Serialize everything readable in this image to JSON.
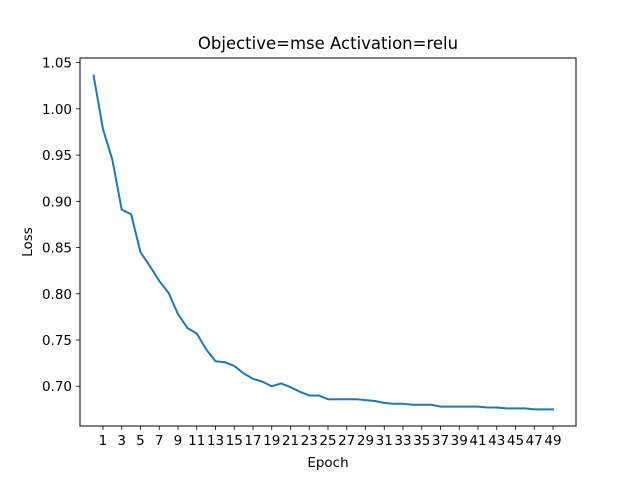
{
  "chart_data": {
    "type": "line",
    "title": "Objective=mse Activation=relu",
    "xlabel": "Epoch",
    "ylabel": "Loss",
    "xlim": [
      -1.45,
      51.45
    ],
    "ylim": [
      0.657,
      1.055
    ],
    "grid": false,
    "xticks": [
      1,
      3,
      5,
      7,
      9,
      11,
      13,
      15,
      17,
      19,
      21,
      23,
      25,
      27,
      29,
      31,
      33,
      35,
      37,
      39,
      41,
      43,
      45,
      47,
      49
    ],
    "yticks": [
      0.7,
      0.75,
      0.8,
      0.85,
      0.9,
      0.95,
      1.0,
      1.05
    ],
    "ytick_labels": [
      "0.70",
      "0.75",
      "0.80",
      "0.85",
      "0.90",
      "0.95",
      "1.00",
      "1.05"
    ],
    "series": [
      {
        "color": "#1f77b4",
        "x": [
          0,
          1,
          2,
          3,
          4,
          5,
          6,
          7,
          8,
          9,
          10,
          11,
          12,
          13,
          14,
          15,
          16,
          17,
          18,
          19,
          20,
          21,
          22,
          23,
          24,
          25,
          26,
          27,
          28,
          29,
          30,
          31,
          32,
          33,
          34,
          35,
          36,
          37,
          38,
          39,
          40,
          41,
          42,
          43,
          44,
          45,
          46,
          47,
          48,
          49
        ],
        "values": [
          1.036,
          0.978,
          0.945,
          0.891,
          0.886,
          0.845,
          0.83,
          0.814,
          0.801,
          0.778,
          0.763,
          0.757,
          0.74,
          0.727,
          0.726,
          0.722,
          0.714,
          0.708,
          0.705,
          0.7,
          0.703,
          0.699,
          0.694,
          0.69,
          0.69,
          0.686,
          0.686,
          0.686,
          0.686,
          0.685,
          0.684,
          0.682,
          0.681,
          0.681,
          0.68,
          0.68,
          0.68,
          0.678,
          0.678,
          0.678,
          0.678,
          0.678,
          0.677,
          0.677,
          0.676,
          0.676,
          0.676,
          0.675,
          0.675,
          0.675
        ]
      }
    ]
  }
}
